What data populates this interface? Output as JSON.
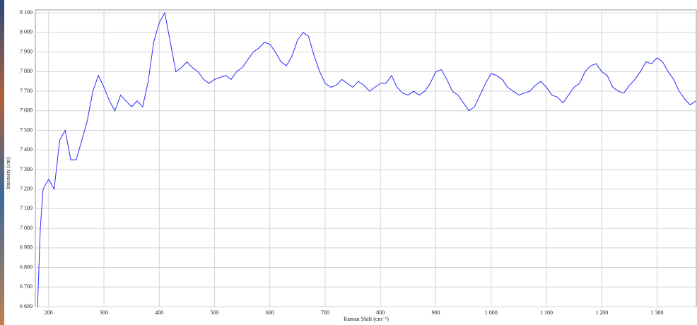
{
  "chart_data": {
    "type": "line",
    "x_label": "Raman Shift (cm⁻¹)",
    "y_label": "Intensity (cnt)",
    "x": [
      180,
      185,
      190,
      200,
      210,
      220,
      230,
      240,
      250,
      260,
      270,
      280,
      290,
      300,
      310,
      320,
      330,
      340,
      350,
      360,
      370,
      380,
      390,
      400,
      410,
      420,
      430,
      440,
      450,
      460,
      470,
      480,
      490,
      500,
      510,
      520,
      530,
      540,
      550,
      560,
      570,
      580,
      590,
      600,
      610,
      620,
      630,
      640,
      650,
      660,
      670,
      680,
      690,
      700,
      710,
      720,
      730,
      740,
      750,
      760,
      770,
      780,
      790,
      800,
      810,
      820,
      830,
      840,
      850,
      860,
      870,
      880,
      890,
      900,
      910,
      920,
      930,
      940,
      950,
      960,
      970,
      980,
      990,
      1000,
      1010,
      1020,
      1030,
      1040,
      1050,
      1060,
      1070,
      1080,
      1090,
      1100,
      1110,
      1120,
      1130,
      1140,
      1150,
      1160,
      1170,
      1180,
      1190,
      1200,
      1210,
      1220,
      1230,
      1240,
      1250,
      1260,
      1270,
      1280,
      1290,
      1300,
      1310,
      1320,
      1330,
      1340,
      1350,
      1360,
      1370
    ],
    "values": [
      6600,
      7000,
      7200,
      7250,
      7200,
      7450,
      7500,
      7350,
      7350,
      7450,
      7550,
      7700,
      7780,
      7720,
      7650,
      7600,
      7680,
      7650,
      7620,
      7650,
      7620,
      7750,
      7950,
      8050,
      8100,
      7950,
      7800,
      7820,
      7850,
      7820,
      7800,
      7760,
      7740,
      7760,
      7770,
      7780,
      7760,
      7800,
      7820,
      7860,
      7900,
      7920,
      7950,
      7940,
      7900,
      7850,
      7830,
      7880,
      7960,
      8000,
      7980,
      7880,
      7800,
      7740,
      7720,
      7730,
      7760,
      7740,
      7720,
      7750,
      7730,
      7700,
      7720,
      7740,
      7740,
      7780,
      7720,
      7690,
      7680,
      7700,
      7680,
      7700,
      7740,
      7800,
      7810,
      7760,
      7700,
      7680,
      7640,
      7600,
      7620,
      7680,
      7740,
      7790,
      7780,
      7760,
      7720,
      7700,
      7680,
      7690,
      7700,
      7730,
      7750,
      7720,
      7680,
      7670,
      7640,
      7680,
      7720,
      7740,
      7800,
      7830,
      7840,
      7800,
      7780,
      7720,
      7700,
      7690,
      7730,
      7760,
      7800,
      7850,
      7840,
      7870,
      7850,
      7800,
      7760,
      7700,
      7660,
      7630,
      7650
    ],
    "color": "#2b2bff",
    "xlim": [
      176,
      1371
    ],
    "ylim": [
      6600,
      8115
    ],
    "xticks": [
      200,
      300,
      400,
      500,
      600,
      700,
      800,
      900,
      {
        "value": 1000,
        "label": "1 000"
      },
      {
        "value": 1100,
        "label": "1 100"
      },
      {
        "value": 1200,
        "label": "1 200"
      },
      {
        "value": 1300,
        "label": "1 300"
      }
    ],
    "yticks": [
      {
        "value": 6600,
        "label": "6 600"
      },
      {
        "value": 6700,
        "label": "6 700"
      },
      {
        "value": 6800,
        "label": "6 800"
      },
      {
        "value": 6900,
        "label": "6 900"
      },
      {
        "value": 7000,
        "label": "7 000"
      },
      {
        "value": 7100,
        "label": "7 100"
      },
      {
        "value": 7200,
        "label": "7 200"
      },
      {
        "value": 7300,
        "label": "7 300"
      },
      {
        "value": 7400,
        "label": "7 400"
      },
      {
        "value": 7500,
        "label": "7 500"
      },
      {
        "value": 7600,
        "label": "7 600"
      },
      {
        "value": 7700,
        "label": "7 700"
      },
      {
        "value": 7800,
        "label": "7 800"
      },
      {
        "value": 7900,
        "label": "7 900"
      },
      {
        "value": 8000,
        "label": "8 000"
      },
      {
        "value": 8100,
        "label": "8 100"
      }
    ],
    "grid": true
  }
}
